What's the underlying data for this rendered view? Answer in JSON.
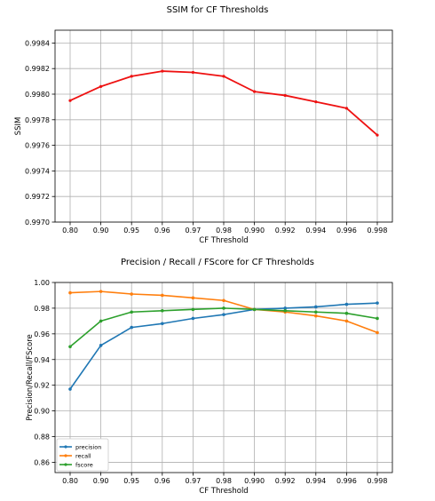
{
  "chart_data": [
    {
      "type": "line",
      "title": "SSIM for CF Thresholds",
      "xlabel": "CF Threshold",
      "ylabel": "SSIM",
      "categories": [
        "0.80",
        "0.90",
        "0.95",
        "0.96",
        "0.97",
        "0.98",
        "0.990",
        "0.992",
        "0.994",
        "0.996",
        "0.998"
      ],
      "ylim": [
        0.997,
        0.9985
      ],
      "yticks": [
        "0.9970",
        "0.9972",
        "0.9974",
        "0.9976",
        "0.9978",
        "0.9980",
        "0.9982",
        "0.9984"
      ],
      "grid": true,
      "series": [
        {
          "color": "#ee1111",
          "values": [
            0.99795,
            0.99806,
            0.99814,
            0.99818,
            0.99817,
            0.99814,
            0.99802,
            0.99799,
            0.99794,
            0.99789,
            0.99768
          ]
        }
      ]
    },
    {
      "type": "line",
      "title": "Precision / Recall / FScore for CF Thresholds",
      "xlabel": "CF Threshold",
      "ylabel": "Precision/Recall/FScore",
      "categories": [
        "0.80",
        "0.90",
        "0.95",
        "0.96",
        "0.97",
        "0.98",
        "0.990",
        "0.992",
        "0.994",
        "0.996",
        "0.998"
      ],
      "ylim": [
        0.852,
        1.0
      ],
      "yticks": [
        "0.86",
        "0.88",
        "0.90",
        "0.92",
        "0.94",
        "0.96",
        "0.98",
        "1.00"
      ],
      "grid": true,
      "legend_position": "lower-left",
      "series": [
        {
          "name": "precision",
          "color": "#1f77b4",
          "values": [
            0.917,
            0.951,
            0.965,
            0.968,
            0.972,
            0.975,
            0.979,
            0.98,
            0.981,
            0.983,
            0.984
          ]
        },
        {
          "name": "recall",
          "color": "#ff7f0e",
          "values": [
            0.992,
            0.993,
            0.991,
            0.99,
            0.988,
            0.986,
            0.979,
            0.977,
            0.974,
            0.97,
            0.961
          ]
        },
        {
          "name": "fscore",
          "color": "#2ca02c",
          "values": [
            0.95,
            0.97,
            0.977,
            0.978,
            0.979,
            0.98,
            0.979,
            0.978,
            0.977,
            0.976,
            0.972
          ]
        }
      ]
    }
  ]
}
